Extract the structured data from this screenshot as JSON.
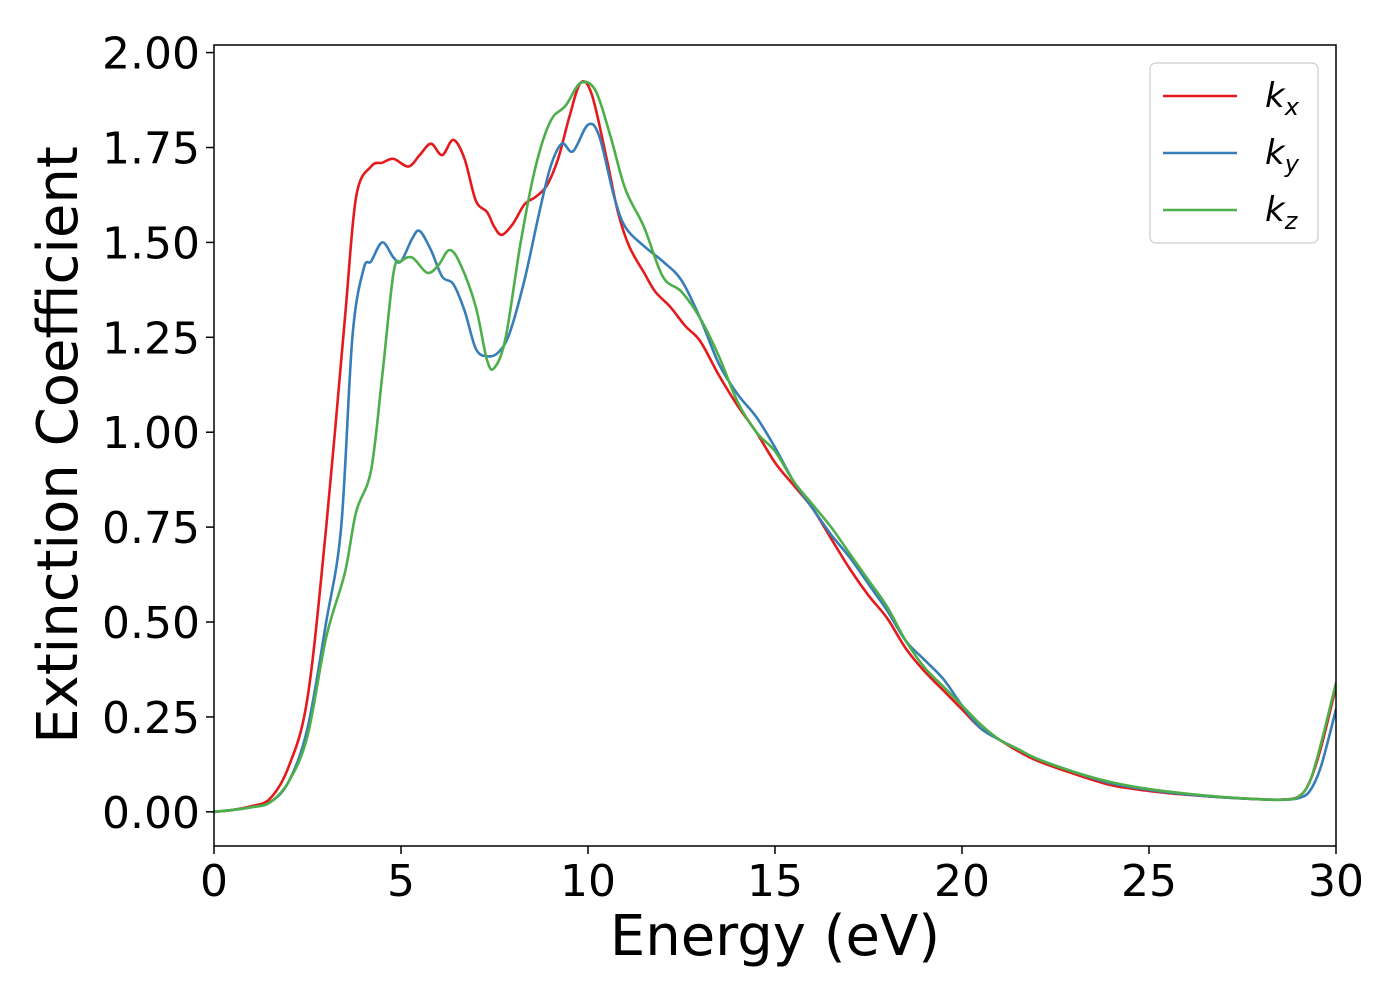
{
  "chart_data": {
    "type": "line",
    "xlabel": "Energy (eV)",
    "ylabel": "Extinction Coefficient",
    "xlim": [
      0,
      30
    ],
    "ylim": [
      -0.09,
      2.02
    ],
    "xticks": [
      0,
      5,
      10,
      15,
      20,
      25,
      30
    ],
    "xtick_labels": [
      "0",
      "5",
      "10",
      "15",
      "20",
      "25",
      "30"
    ],
    "yticks": [
      0.0,
      0.25,
      0.5,
      0.75,
      1.0,
      1.25,
      1.5,
      1.75,
      2.0
    ],
    "ytick_labels": [
      "0.00",
      "0.25",
      "0.50",
      "0.75",
      "1.00",
      "1.25",
      "1.50",
      "1.75",
      "2.00"
    ],
    "grid": false,
    "legend_position": "top-right",
    "series": [
      {
        "name": "k",
        "subscript": "x",
        "color": "#e41a1c",
        "points": [
          [
            0,
            0
          ],
          [
            0.5,
            0.005
          ],
          [
            1.0,
            0.015
          ],
          [
            1.5,
            0.035
          ],
          [
            2.0,
            0.12
          ],
          [
            2.5,
            0.3
          ],
          [
            3.0,
            0.75
          ],
          [
            3.5,
            1.3
          ],
          [
            3.8,
            1.62
          ],
          [
            4.2,
            1.7
          ],
          [
            4.5,
            1.71
          ],
          [
            4.8,
            1.72
          ],
          [
            5.2,
            1.7
          ],
          [
            5.5,
            1.73
          ],
          [
            5.8,
            1.76
          ],
          [
            6.1,
            1.73
          ],
          [
            6.4,
            1.77
          ],
          [
            6.7,
            1.72
          ],
          [
            7.0,
            1.61
          ],
          [
            7.3,
            1.58
          ],
          [
            7.5,
            1.54
          ],
          [
            7.7,
            1.52
          ],
          [
            8.0,
            1.55
          ],
          [
            8.3,
            1.6
          ],
          [
            8.6,
            1.62
          ],
          [
            8.9,
            1.65
          ],
          [
            9.2,
            1.72
          ],
          [
            9.5,
            1.83
          ],
          [
            9.8,
            1.92
          ],
          [
            10.1,
            1.89
          ],
          [
            10.5,
            1.72
          ],
          [
            10.8,
            1.58
          ],
          [
            11.1,
            1.49
          ],
          [
            11.5,
            1.42
          ],
          [
            11.8,
            1.37
          ],
          [
            12.2,
            1.33
          ],
          [
            12.6,
            1.28
          ],
          [
            13.0,
            1.24
          ],
          [
            13.5,
            1.15
          ],
          [
            14.0,
            1.07
          ],
          [
            14.5,
            1.0
          ],
          [
            15.0,
            0.92
          ],
          [
            15.5,
            0.86
          ],
          [
            16.0,
            0.8
          ],
          [
            16.5,
            0.72
          ],
          [
            17.0,
            0.64
          ],
          [
            17.5,
            0.57
          ],
          [
            18.0,
            0.51
          ],
          [
            18.5,
            0.43
          ],
          [
            19.0,
            0.37
          ],
          [
            19.5,
            0.32
          ],
          [
            20.0,
            0.27
          ],
          [
            20.5,
            0.22
          ],
          [
            21.0,
            0.19
          ],
          [
            21.5,
            0.16
          ],
          [
            22.0,
            0.135
          ],
          [
            23.0,
            0.1
          ],
          [
            24.0,
            0.07
          ],
          [
            25.0,
            0.055
          ],
          [
            26.0,
            0.045
          ],
          [
            27.0,
            0.038
          ],
          [
            28.0,
            0.033
          ],
          [
            28.5,
            0.032
          ],
          [
            29.0,
            0.04
          ],
          [
            29.3,
            0.08
          ],
          [
            29.6,
            0.17
          ],
          [
            30.0,
            0.33
          ]
        ]
      },
      {
        "name": "k",
        "subscript": "y",
        "color": "#377eb8",
        "points": [
          [
            0,
            0
          ],
          [
            0.5,
            0.005
          ],
          [
            1.0,
            0.012
          ],
          [
            1.5,
            0.025
          ],
          [
            2.0,
            0.08
          ],
          [
            2.5,
            0.22
          ],
          [
            3.0,
            0.5
          ],
          [
            3.4,
            0.75
          ],
          [
            3.7,
            1.25
          ],
          [
            4.0,
            1.43
          ],
          [
            4.2,
            1.45
          ],
          [
            4.5,
            1.5
          ],
          [
            4.8,
            1.46
          ],
          [
            5.0,
            1.45
          ],
          [
            5.3,
            1.51
          ],
          [
            5.5,
            1.53
          ],
          [
            5.8,
            1.48
          ],
          [
            6.1,
            1.41
          ],
          [
            6.4,
            1.39
          ],
          [
            6.7,
            1.32
          ],
          [
            7.0,
            1.22
          ],
          [
            7.3,
            1.2
          ],
          [
            7.6,
            1.21
          ],
          [
            7.9,
            1.26
          ],
          [
            8.3,
            1.4
          ],
          [
            8.7,
            1.58
          ],
          [
            9.0,
            1.7
          ],
          [
            9.3,
            1.76
          ],
          [
            9.6,
            1.74
          ],
          [
            10.0,
            1.81
          ],
          [
            10.3,
            1.78
          ],
          [
            10.7,
            1.62
          ],
          [
            11.0,
            1.54
          ],
          [
            11.5,
            1.49
          ],
          [
            12.0,
            1.45
          ],
          [
            12.5,
            1.4
          ],
          [
            13.0,
            1.3
          ],
          [
            13.5,
            1.18
          ],
          [
            14.0,
            1.1
          ],
          [
            14.5,
            1.04
          ],
          [
            15.0,
            0.96
          ],
          [
            15.5,
            0.87
          ],
          [
            16.0,
            0.8
          ],
          [
            16.5,
            0.73
          ],
          [
            17.0,
            0.67
          ],
          [
            17.5,
            0.6
          ],
          [
            18.0,
            0.53
          ],
          [
            18.5,
            0.45
          ],
          [
            19.0,
            0.4
          ],
          [
            19.5,
            0.35
          ],
          [
            20.0,
            0.28
          ],
          [
            20.5,
            0.22
          ],
          [
            21.0,
            0.19
          ],
          [
            21.5,
            0.165
          ],
          [
            22.0,
            0.14
          ],
          [
            23.0,
            0.105
          ],
          [
            24.0,
            0.075
          ],
          [
            25.0,
            0.058
          ],
          [
            26.0,
            0.046
          ],
          [
            27.0,
            0.038
          ],
          [
            28.0,
            0.033
          ],
          [
            28.6,
            0.032
          ],
          [
            29.0,
            0.036
          ],
          [
            29.3,
            0.055
          ],
          [
            29.6,
            0.12
          ],
          [
            30.0,
            0.27
          ]
        ]
      },
      {
        "name": "k",
        "subscript": "z",
        "color": "#4daf4a",
        "points": [
          [
            0,
            0
          ],
          [
            0.5,
            0.005
          ],
          [
            1.0,
            0.012
          ],
          [
            1.5,
            0.025
          ],
          [
            2.0,
            0.08
          ],
          [
            2.5,
            0.2
          ],
          [
            3.0,
            0.46
          ],
          [
            3.5,
            0.63
          ],
          [
            3.8,
            0.79
          ],
          [
            4.2,
            0.9
          ],
          [
            4.5,
            1.15
          ],
          [
            4.8,
            1.42
          ],
          [
            5.0,
            1.45
          ],
          [
            5.3,
            1.46
          ],
          [
            5.7,
            1.42
          ],
          [
            6.0,
            1.44
          ],
          [
            6.3,
            1.48
          ],
          [
            6.6,
            1.44
          ],
          [
            7.0,
            1.33
          ],
          [
            7.3,
            1.19
          ],
          [
            7.5,
            1.17
          ],
          [
            7.8,
            1.25
          ],
          [
            8.2,
            1.5
          ],
          [
            8.6,
            1.7
          ],
          [
            9.0,
            1.82
          ],
          [
            9.4,
            1.86
          ],
          [
            9.8,
            1.92
          ],
          [
            10.2,
            1.9
          ],
          [
            10.6,
            1.78
          ],
          [
            11.0,
            1.64
          ],
          [
            11.5,
            1.54
          ],
          [
            12.0,
            1.41
          ],
          [
            12.5,
            1.37
          ],
          [
            13.0,
            1.3
          ],
          [
            13.5,
            1.2
          ],
          [
            14.0,
            1.08
          ],
          [
            14.5,
            1.0
          ],
          [
            15.0,
            0.95
          ],
          [
            15.5,
            0.87
          ],
          [
            16.0,
            0.81
          ],
          [
            16.5,
            0.75
          ],
          [
            17.0,
            0.68
          ],
          [
            17.5,
            0.61
          ],
          [
            18.0,
            0.54
          ],
          [
            18.5,
            0.45
          ],
          [
            19.0,
            0.38
          ],
          [
            19.5,
            0.33
          ],
          [
            20.0,
            0.28
          ],
          [
            20.5,
            0.23
          ],
          [
            21.0,
            0.19
          ],
          [
            21.5,
            0.165
          ],
          [
            22.0,
            0.14
          ],
          [
            23.0,
            0.105
          ],
          [
            24.0,
            0.078
          ],
          [
            25.0,
            0.06
          ],
          [
            26.0,
            0.048
          ],
          [
            27.0,
            0.039
          ],
          [
            28.0,
            0.033
          ],
          [
            28.6,
            0.032
          ],
          [
            29.0,
            0.04
          ],
          [
            29.3,
            0.08
          ],
          [
            29.6,
            0.18
          ],
          [
            30.0,
            0.34
          ]
        ]
      }
    ]
  }
}
